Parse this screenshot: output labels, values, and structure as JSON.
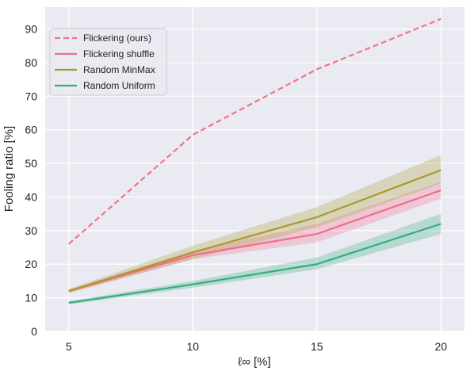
{
  "chart_data": {
    "type": "line",
    "title": "",
    "xlabel": "ℓ∞ [%]",
    "ylabel": "Fooling ratio [%]",
    "x": [
      5,
      10,
      15,
      20
    ],
    "xticks": [
      5,
      10,
      15,
      20
    ],
    "yticks": [
      0,
      10,
      20,
      30,
      40,
      50,
      60,
      70,
      80,
      90
    ],
    "xlim": [
      4.05,
      20.95
    ],
    "ylim": [
      0,
      96.5
    ],
    "grid": true,
    "legend_position": "top-left",
    "background": "#eaeaf2",
    "series": [
      {
        "name": "Flickering (ours)",
        "color": "#f77189",
        "dash": true,
        "values": [
          26,
          58.5,
          78,
          93
        ],
        "lower": null,
        "upper": null
      },
      {
        "name": "Flickering shuffle",
        "color": "#f36b8c",
        "dash": false,
        "values": [
          12,
          22.7,
          29,
          42
        ],
        "lower": [
          11.5,
          21.5,
          26.5,
          39.5
        ],
        "upper": [
          12.5,
          24,
          32,
          44.5
        ]
      },
      {
        "name": "Random MinMax",
        "color": "#a89a2d",
        "dash": false,
        "values": [
          12,
          23.5,
          34,
          48
        ],
        "lower": [
          11.4,
          21.5,
          31,
          44
        ],
        "upper": [
          12.6,
          25.5,
          37,
          52.5
        ]
      },
      {
        "name": "Random Uniform",
        "color": "#34ae7d",
        "dash": false,
        "values": [
          8.5,
          14,
          20,
          32
        ],
        "lower": [
          8,
          13,
          18.5,
          29
        ],
        "upper": [
          9,
          15,
          22,
          35
        ]
      }
    ]
  }
}
